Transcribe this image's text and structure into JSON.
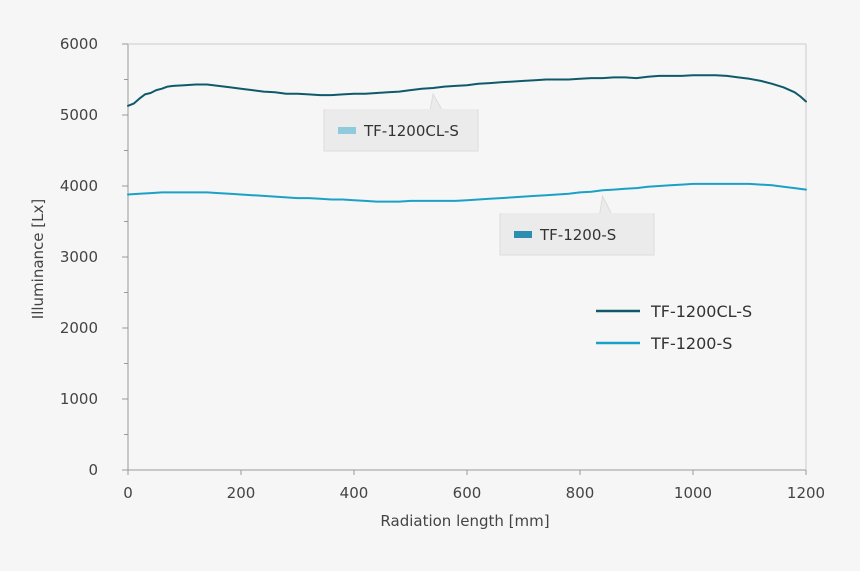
{
  "chart_data": {
    "type": "line",
    "xlabel": "Radiation length [mm]",
    "ylabel": "Illuminance [Lx]",
    "xlim": [
      0,
      1200
    ],
    "ylim": [
      0,
      6000
    ],
    "xticks": [
      0,
      200,
      400,
      600,
      800,
      1000,
      1200
    ],
    "yticks": [
      0,
      1000,
      2000,
      3000,
      4000,
      5000,
      6000
    ],
    "minor_y_step": 500,
    "grid": false,
    "legend_position": "right-middle",
    "series": [
      {
        "name": "TF-1200CL-S",
        "color": "#0e5a6a",
        "x": [
          0,
          10,
          20,
          30,
          40,
          50,
          60,
          70,
          80,
          100,
          120,
          140,
          160,
          180,
          200,
          220,
          240,
          260,
          280,
          300,
          320,
          340,
          360,
          380,
          400,
          420,
          440,
          460,
          480,
          500,
          520,
          540,
          560,
          580,
          600,
          620,
          640,
          660,
          680,
          700,
          720,
          740,
          760,
          780,
          800,
          820,
          840,
          860,
          880,
          900,
          920,
          940,
          960,
          980,
          1000,
          1020,
          1040,
          1060,
          1080,
          1100,
          1120,
          1140,
          1160,
          1180,
          1190,
          1200
        ],
        "y": [
          5130,
          5160,
          5230,
          5290,
          5310,
          5350,
          5370,
          5400,
          5410,
          5420,
          5430,
          5430,
          5410,
          5390,
          5370,
          5350,
          5330,
          5320,
          5300,
          5300,
          5290,
          5280,
          5280,
          5290,
          5300,
          5300,
          5310,
          5320,
          5330,
          5350,
          5370,
          5380,
          5400,
          5410,
          5420,
          5440,
          5450,
          5460,
          5470,
          5480,
          5490,
          5500,
          5500,
          5500,
          5510,
          5520,
          5520,
          5530,
          5530,
          5520,
          5540,
          5550,
          5550,
          5550,
          5560,
          5560,
          5560,
          5550,
          5530,
          5510,
          5480,
          5440,
          5390,
          5320,
          5260,
          5190
        ]
      },
      {
        "name": "TF-1200-S",
        "color": "#1aa1c7",
        "x": [
          0,
          20,
          40,
          60,
          80,
          100,
          120,
          140,
          160,
          180,
          200,
          220,
          240,
          260,
          280,
          300,
          320,
          340,
          360,
          380,
          400,
          420,
          440,
          460,
          480,
          500,
          520,
          540,
          560,
          580,
          600,
          620,
          640,
          660,
          680,
          700,
          720,
          740,
          760,
          780,
          800,
          820,
          840,
          860,
          880,
          900,
          920,
          940,
          960,
          980,
          1000,
          1020,
          1040,
          1060,
          1080,
          1100,
          1120,
          1140,
          1160,
          1180,
          1200
        ],
        "y": [
          3880,
          3890,
          3900,
          3910,
          3910,
          3910,
          3910,
          3910,
          3900,
          3890,
          3880,
          3870,
          3860,
          3850,
          3840,
          3830,
          3830,
          3820,
          3810,
          3810,
          3800,
          3790,
          3780,
          3780,
          3780,
          3790,
          3790,
          3790,
          3790,
          3790,
          3800,
          3810,
          3820,
          3830,
          3840,
          3850,
          3860,
          3870,
          3880,
          3890,
          3910,
          3920,
          3940,
          3950,
          3960,
          3970,
          3990,
          4000,
          4010,
          4020,
          4030,
          4030,
          4030,
          4030,
          4030,
          4030,
          4020,
          4010,
          3990,
          3970,
          3950
        ]
      }
    ],
    "legend": [
      {
        "label": "TF-1200CL-S",
        "color": "#0e5a6a"
      },
      {
        "label": "TF-1200-S",
        "color": "#1aa1c7"
      }
    ],
    "annotations": [
      {
        "text": "TF-1200CL-S",
        "swatch_color": "#8fcbdd",
        "points_to": {
          "series": "TF-1200CL-S",
          "x": 540
        }
      },
      {
        "text": "TF-1200-S",
        "swatch_color": "#2a8fb0",
        "points_to": {
          "series": "TF-1200-S",
          "x": 840
        }
      }
    ]
  }
}
